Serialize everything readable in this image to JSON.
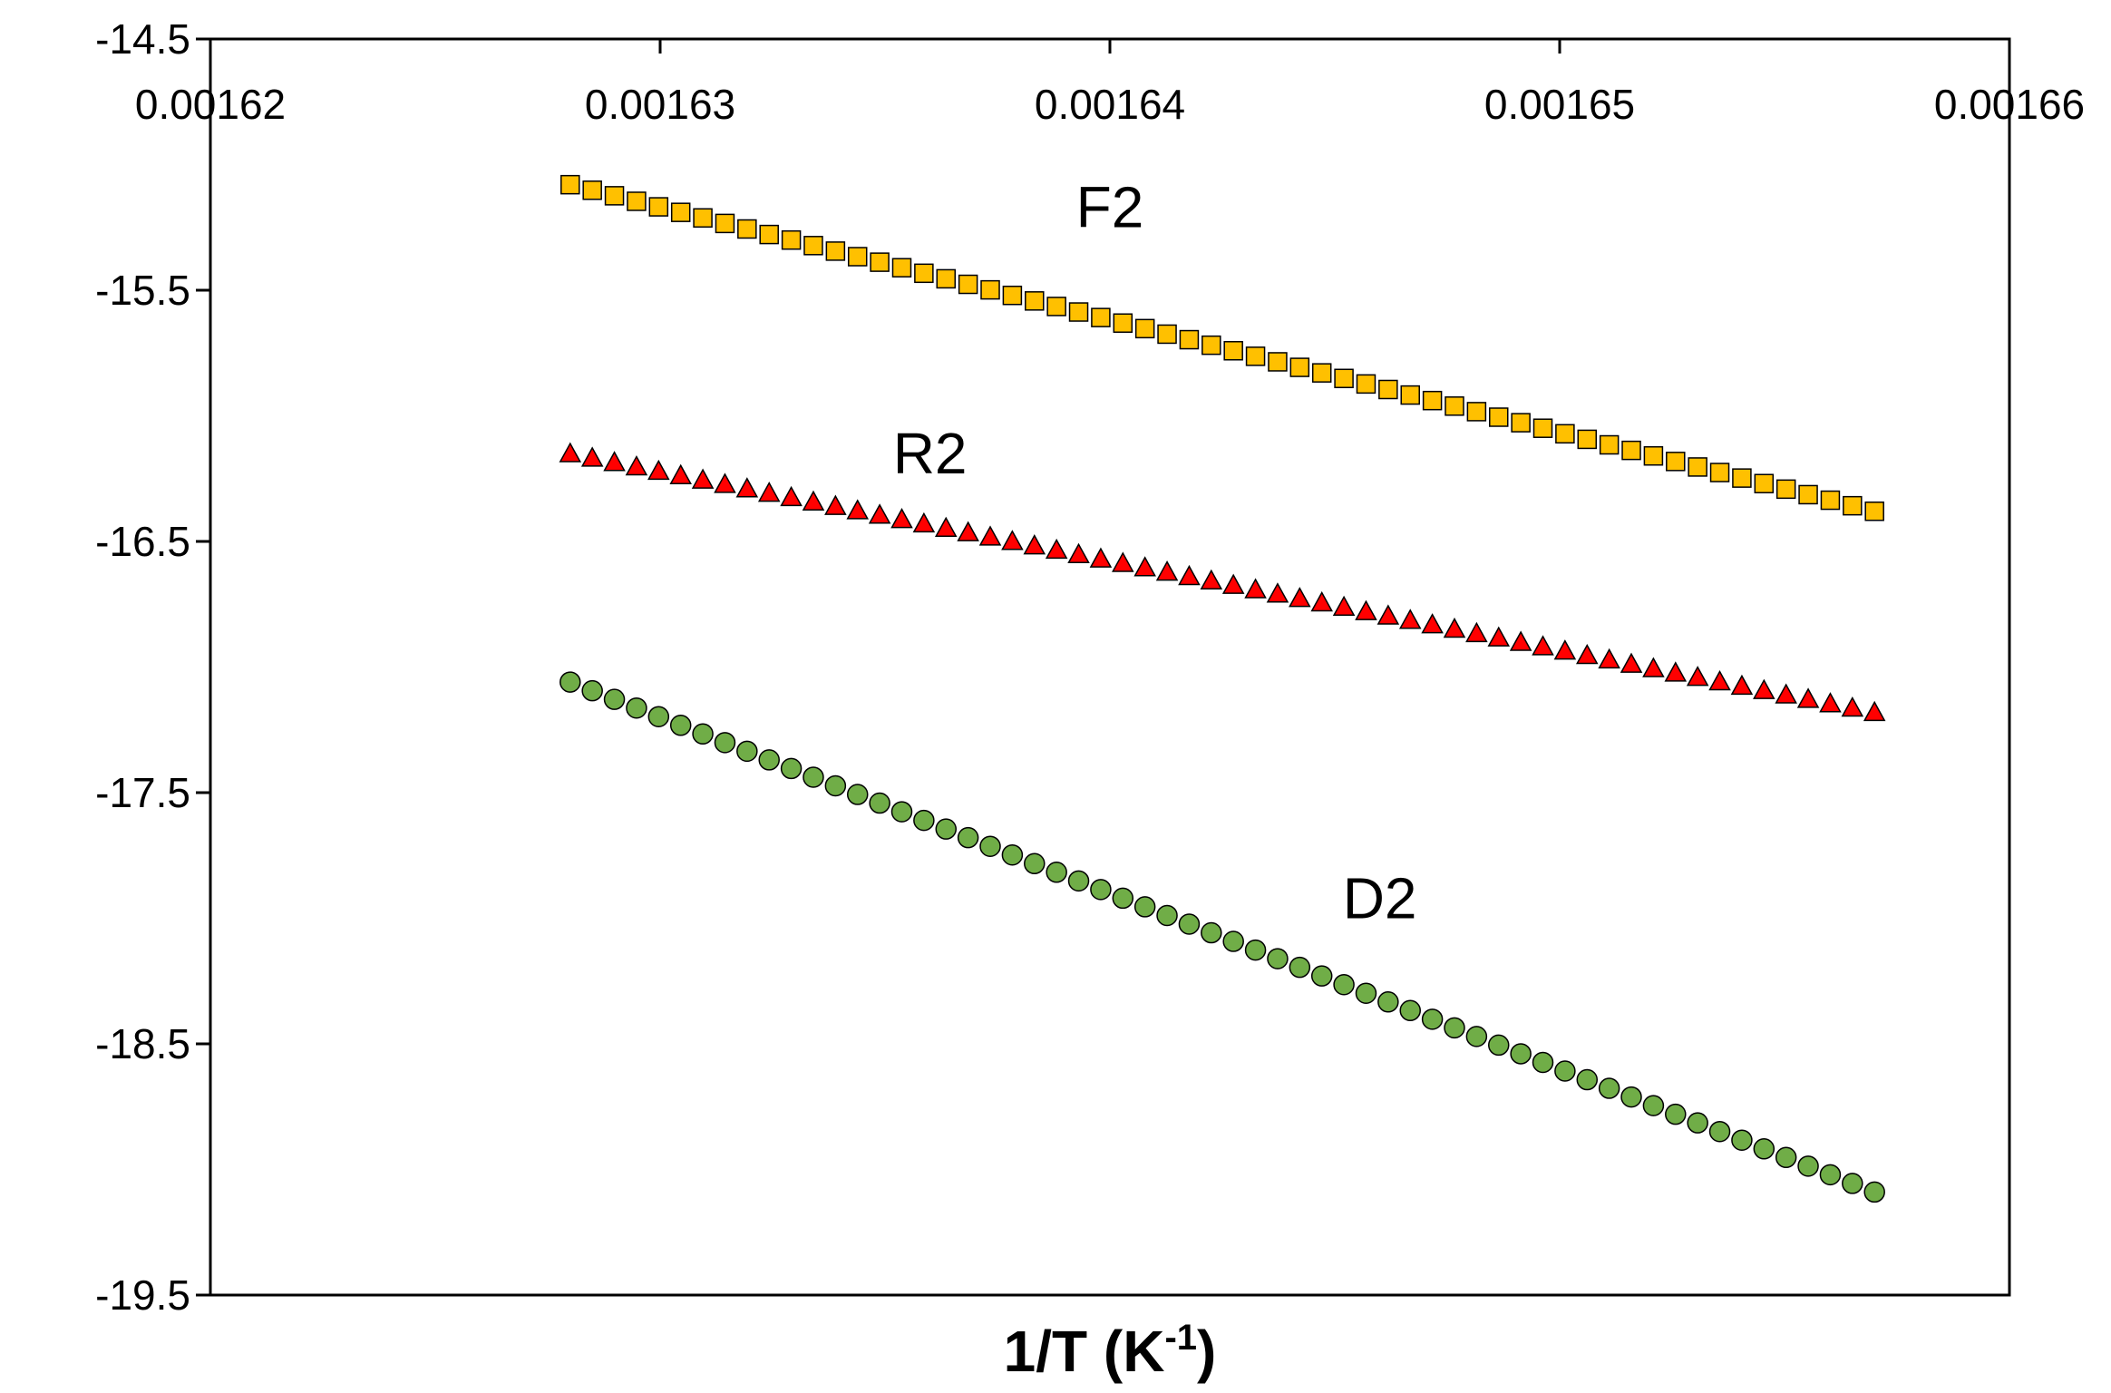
{
  "chart_data": {
    "type": "scatter",
    "title": "",
    "xlabel": "1/T (K",
    "xlabel_sup": "-1",
    "xlabel_close": ")",
    "ylabel": "",
    "xlim": [
      0.00162,
      0.00166
    ],
    "ylim": [
      -19.5,
      -14.5
    ],
    "x_axis_position": "top",
    "x_ticks": [
      0.00162,
      0.00163,
      0.00164,
      0.00165,
      0.00166
    ],
    "x_tick_labels": [
      "0.00162",
      "0.00163",
      "0.00164",
      "0.00165",
      "0.00166"
    ],
    "y_ticks": [
      -14.5,
      -15.5,
      -16.5,
      -17.5,
      -18.5,
      -19.5
    ],
    "y_tick_labels": [
      "-14.5",
      "-15.5",
      "-16.5",
      "-17.5",
      "-18.5",
      "-19.5"
    ],
    "grid": false,
    "legend": "none",
    "x_start": 0.001628,
    "x_end": 0.001657,
    "point_count": 60,
    "series": [
      {
        "name": "F2",
        "marker": "square",
        "color": "#FFC000",
        "y_start": -15.08,
        "y_end": -16.38,
        "label_position": [
          0.00164,
          -15.17
        ]
      },
      {
        "name": "R2",
        "marker": "triangle",
        "color": "#FF0000",
        "y_start": -16.15,
        "y_end": -17.18,
        "label_position": [
          0.001636,
          -16.15
        ]
      },
      {
        "name": "D2",
        "marker": "circle",
        "color": "#70AD47",
        "y_start": -17.06,
        "y_end": -19.09,
        "label_position": [
          0.001646,
          -17.92
        ]
      }
    ]
  }
}
